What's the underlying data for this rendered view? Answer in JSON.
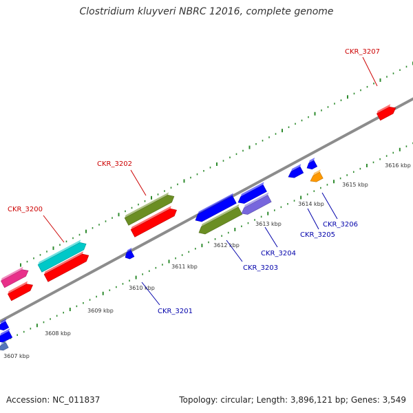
{
  "title": "Clostridium kluyveri NBRC 12016, complete genome",
  "footer": {
    "accession": "Accession: NC_011837",
    "summary": "Topology: circular; Length: 3,896,121 bp; Genes: 3,549"
  },
  "colors": {
    "backbone": "#8c8c8c",
    "tick": "#2e8b2e",
    "forward_label": "#cc0000",
    "reverse_label": "#0000aa",
    "red": "#ff0000",
    "cyan": "#00c8c8",
    "olive": "#6b8e23",
    "magenta": "#e8308a",
    "blue": "#0000ff",
    "lavender": "#7766dd",
    "orange": "#ff9900",
    "steel": "#5577bb"
  },
  "scale": {
    "ticks": [
      "3607 kbp",
      "3608 kbp",
      "3609 kbp",
      "3610 kbp",
      "3611 kbp",
      "3612 kbp",
      "3613 kbp",
      "3614 kbp",
      "3615 kbp",
      "3616 kbp"
    ]
  },
  "labels": {
    "forward": [
      "CKR_3200",
      "CKR_3202",
      "CKR_3207"
    ],
    "reverse": [
      "CKR_3201",
      "CKR_3203",
      "CKR_3204",
      "CKR_3205",
      "CKR_3206"
    ]
  },
  "features": [
    {
      "strand": "forward",
      "lane": "outer",
      "color": "magenta",
      "label": ""
    },
    {
      "strand": "forward",
      "lane": "outer",
      "color": "cyan",
      "label": "CKR_3200"
    },
    {
      "strand": "forward",
      "lane": "outer",
      "color": "olive",
      "label": "CKR_3202"
    },
    {
      "strand": "forward",
      "lane": "inner",
      "color": "red",
      "label": ""
    },
    {
      "strand": "forward",
      "lane": "inner",
      "color": "red",
      "label": ""
    },
    {
      "strand": "forward",
      "lane": "inner",
      "color": "red",
      "label": ""
    },
    {
      "strand": "forward",
      "lane": "inner",
      "color": "red",
      "label": "CKR_3207"
    },
    {
      "strand": "reverse",
      "lane": "inner",
      "color": "blue",
      "label": "CKR_3201"
    },
    {
      "strand": "reverse",
      "lane": "inner",
      "color": "blue",
      "label": ""
    },
    {
      "strand": "reverse",
      "lane": "inner",
      "color": "blue",
      "label": ""
    },
    {
      "strand": "reverse",
      "lane": "inner",
      "color": "blue",
      "label": ""
    },
    {
      "strand": "reverse",
      "lane": "inner",
      "color": "olive",
      "label": "CKR_3203"
    },
    {
      "strand": "reverse",
      "lane": "outer",
      "color": "blue",
      "label": ""
    },
    {
      "strand": "reverse",
      "lane": "outer",
      "color": "lavender",
      "label": "CKR_3204"
    },
    {
      "strand": "reverse",
      "lane": "outer",
      "color": "blue",
      "label": "CKR_3205"
    },
    {
      "strand": "reverse",
      "lane": "inner",
      "color": "orange",
      "label": "CKR_3206"
    },
    {
      "strand": "reverse",
      "lane": "inner",
      "color": "blue",
      "label": ""
    },
    {
      "strand": "reverse",
      "lane": "inner",
      "color": "steel",
      "label": ""
    }
  ]
}
